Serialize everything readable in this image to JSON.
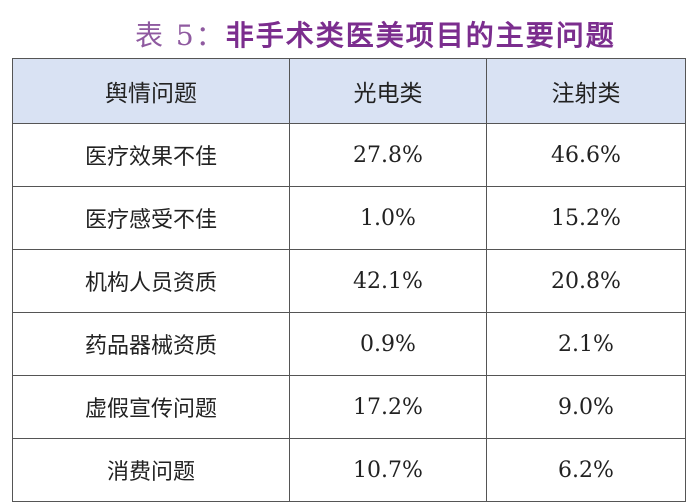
{
  "title": {
    "prefix": "表 5：",
    "text": "非手术类医美项目的主要问题",
    "color": "#7b2d8e"
  },
  "table": {
    "header_bg": "#d9e2f3",
    "headers": [
      "舆情问题",
      "光电类",
      "注射类"
    ],
    "rows": [
      [
        "医疗效果不佳",
        "27.8%",
        "46.6%"
      ],
      [
        "医疗感受不佳",
        "1.0%",
        "15.2%"
      ],
      [
        "机构人员资质",
        "42.1%",
        "20.8%"
      ],
      [
        "药品器械资质",
        "0.9%",
        "2.1%"
      ],
      [
        "虚假宣传问题",
        "17.2%",
        "9.0%"
      ],
      [
        "消费问题",
        "10.7%",
        "6.2%"
      ]
    ]
  }
}
